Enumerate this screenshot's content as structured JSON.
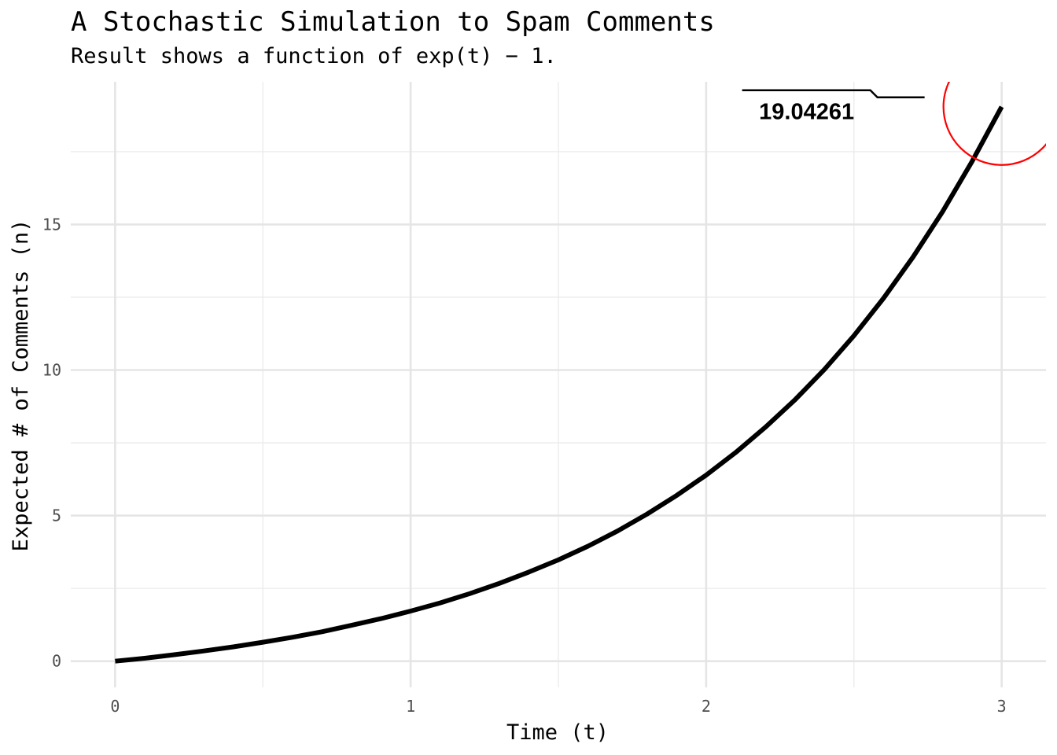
{
  "chart_data": {
    "type": "line",
    "title": "A Stochastic Simulation to Spam Comments",
    "subtitle": "Result shows a function of exp(t) − 1.",
    "xlabel": "Time (t)",
    "ylabel": "Expected # of Comments (n)",
    "xlim": [
      -0.15,
      3.15
    ],
    "ylim": [
      -0.9,
      19.9
    ],
    "x_ticks": [
      0,
      1,
      2,
      3
    ],
    "x_tick_labels": [
      "0",
      "1",
      "2",
      "3"
    ],
    "y_ticks": [
      0,
      5,
      10,
      15
    ],
    "y_tick_labels": [
      "0",
      "5",
      "10",
      "15"
    ],
    "x_minor_ticks": [
      0.5,
      1.5,
      2.5
    ],
    "y_minor_ticks": [
      2.5,
      7.5,
      12.5,
      17.5
    ],
    "grid": true,
    "series": [
      {
        "color": "#000000",
        "x": [
          0,
          0.1,
          0.2,
          0.3,
          0.4,
          0.5,
          0.6,
          0.7,
          0.8,
          0.9,
          1.0,
          1.1,
          1.2,
          1.3,
          1.4,
          1.5,
          1.6,
          1.7,
          1.8,
          1.9,
          2.0,
          2.1,
          2.2,
          2.3,
          2.4,
          2.5,
          2.6,
          2.7,
          2.8,
          2.9,
          3.0
        ],
        "y": [
          0,
          0.1,
          0.22,
          0.35,
          0.49,
          0.65,
          0.82,
          1.01,
          1.23,
          1.46,
          1.72,
          2.0,
          2.32,
          2.67,
          3.06,
          3.48,
          3.95,
          4.47,
          5.05,
          5.69,
          6.39,
          7.17,
          8.03,
          8.97,
          10.02,
          11.18,
          12.46,
          13.88,
          15.44,
          17.17,
          19.04
        ]
      }
    ],
    "annotation": {
      "label": "19.04261",
      "x": 3.0,
      "y": 19.04261,
      "circle_color": "#ff0000"
    }
  }
}
